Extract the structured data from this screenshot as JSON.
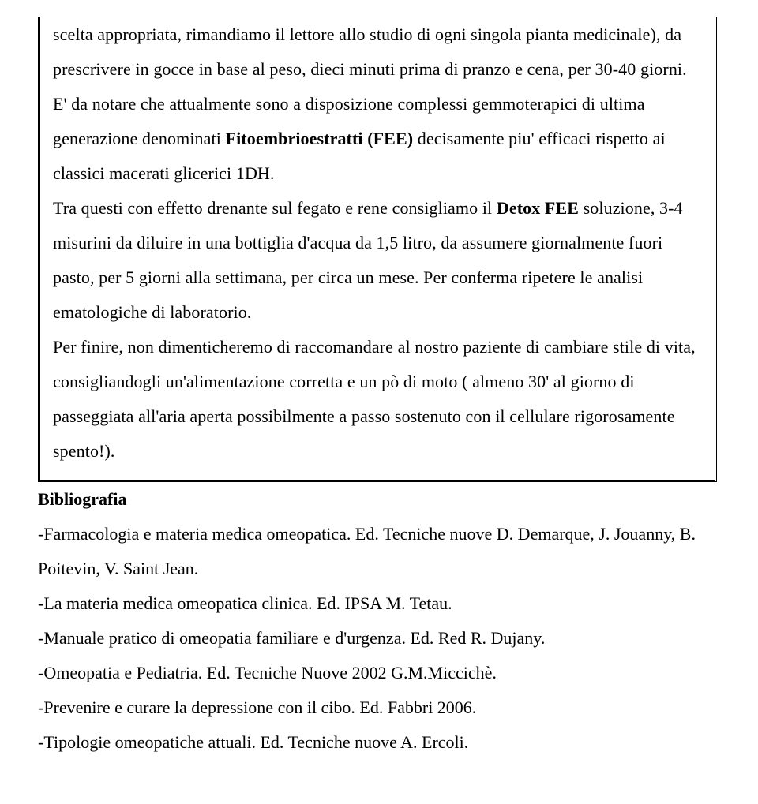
{
  "document": {
    "font_family": "Times New Roman",
    "font_size_pt": 16,
    "text_color": "#000000",
    "background_color": "#ffffff",
    "line_height": 2.0,
    "box_border": "double",
    "box_border_color": "#000000",
    "boxed_paragraph": {
      "runs": [
        {
          "text": "scelta appropriata, rimandiamo il lettore allo studio di ogni singola pianta medicinale), da prescrivere in gocce in base al peso, dieci minuti prima di pranzo e cena, per 30-40 giorni.",
          "bold": false
        },
        {
          "text": "\nE' da notare che attualmente sono a disposizione complessi gemmoterapici di ultima generazione denominati ",
          "bold": false
        },
        {
          "text": "Fitoembrioestratti (FEE)",
          "bold": true
        },
        {
          "text": " decisamente piu' efficaci rispetto ai classici macerati glicerici 1DH.",
          "bold": false
        },
        {
          "text": "\nTra questi con effetto drenante sul fegato e rene consigliamo il ",
          "bold": false
        },
        {
          "text": "Detox FEE",
          "bold": true
        },
        {
          "text": " soluzione, 3-4 misurini da diluire in una bottiglia d'acqua da 1,5 litro, da assumere giornalmente fuori pasto, per 5 giorni alla settimana, per circa un mese. Per conferma ripetere le analisi ematologiche di laboratorio.",
          "bold": false
        },
        {
          "text": "\nPer finire, non dimenticheremo di raccomandare al nostro paziente di cambiare stile di vita, consigliandogli un'alimentazione corretta e un pò di moto ( almeno 30' al giorno di passeggiata all'aria aperta possibilmente a passo sostenuto con il cellulare rigorosamente spento!).",
          "bold": false
        }
      ]
    },
    "bibliography": {
      "heading": "Bibliografia",
      "items": [
        "-Farmacologia e materia medica omeopatica.  Ed. Tecniche nuove   D. Demarque, J. Jouanny, B. Poitevin, V. Saint Jean.",
        "-La materia medica omeopatica clinica.  Ed. IPSA  M. Tetau.",
        "-Manuale pratico di omeopatia familiare e d'urgenza.  Ed. Red   R. Dujany.",
        "-Omeopatia e Pediatria. Ed. Tecniche Nuove 2002 G.M.Miccichè.",
        "-Prevenire e curare la depressione con il cibo.  Ed. Fabbri 2006.",
        "-Tipologie omeopatiche attuali.  Ed. Tecniche nuove  A. Ercoli."
      ]
    }
  }
}
